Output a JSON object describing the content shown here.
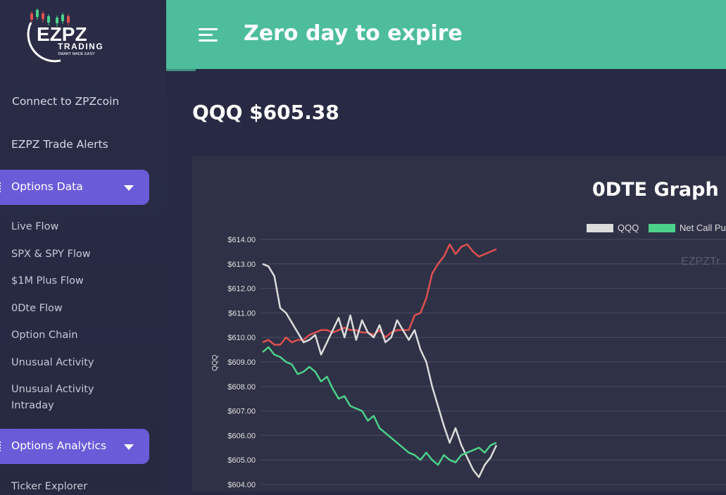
{
  "sidebar": {
    "brand_line1": "EZPZ",
    "brand_line2": "TRADING",
    "brand_tagline": "SMART MADE EASY",
    "items": [
      {
        "label": "Connect to ZPZcoin"
      },
      {
        "label": "EZPZ Trade Alerts"
      }
    ],
    "options_data": {
      "label": "Options Data",
      "subitems": [
        {
          "label": "Live Flow"
        },
        {
          "label": "SPX & SPY Flow"
        },
        {
          "label": "$1M Plus Flow"
        },
        {
          "label": "0Dte Flow"
        },
        {
          "label": "Option Chain"
        },
        {
          "label": "Unusual Activity"
        },
        {
          "label": "Unusual Activity Intraday"
        }
      ]
    },
    "options_analytics": {
      "label": "Options Analytics",
      "subitems": [
        {
          "label": "Ticker Explorer"
        }
      ]
    }
  },
  "header": {
    "title": "Zero day to expire"
  },
  "main": {
    "ticker_line": "QQQ $605.38"
  },
  "colors": {
    "accent_green": "#4dbd9c",
    "accent_purple": "#6a5bd8",
    "qqq_line": "#dcdcdc",
    "net_call_put_line": "#4cd18a",
    "red_line": "#e05050"
  },
  "chart_data": {
    "type": "line",
    "title": "0DTE Graph",
    "ylabel": "QQQ",
    "watermark": "EZPZTr",
    "ylim": [
      604,
      614
    ],
    "yticks": [
      "$614.00",
      "$613.00",
      "$612.00",
      "$611.00",
      "$610.00",
      "$609.00",
      "$608.00",
      "$607.00",
      "$606.00",
      "$605.00",
      "$604.00"
    ],
    "legend": [
      "QQQ",
      "Net Call Pu"
    ],
    "series": [
      {
        "name": "QQQ",
        "color": "#dcdcdc",
        "values": [
          613.0,
          612.9,
          612.5,
          611.2,
          611.0,
          610.6,
          610.2,
          609.8,
          609.9,
          610.1,
          609.3,
          609.8,
          610.3,
          610.8,
          610.0,
          610.9,
          609.9,
          610.7,
          610.2,
          610.0,
          610.5,
          609.8,
          610.0,
          610.7,
          610.3,
          609.9,
          610.3,
          609.5,
          609.0,
          608.0,
          607.2,
          606.4,
          605.7,
          606.3,
          605.6,
          605.1,
          604.6,
          604.3,
          604.8,
          605.1,
          605.6
        ]
      },
      {
        "name": "Net Call Put",
        "color": "#4cd18a",
        "values": [
          609.4,
          609.6,
          609.3,
          609.2,
          609.0,
          608.9,
          608.5,
          608.6,
          608.8,
          608.6,
          608.2,
          608.4,
          607.9,
          607.5,
          607.6,
          607.2,
          607.1,
          607.0,
          606.6,
          606.8,
          606.3,
          606.1,
          605.9,
          605.7,
          605.5,
          605.3,
          605.2,
          605.0,
          605.3,
          605.0,
          604.8,
          605.2,
          605.0,
          604.9,
          605.2,
          605.3,
          605.4,
          605.5,
          605.3,
          605.6,
          605.7
        ]
      },
      {
        "name": "",
        "color": "#e05050",
        "values": [
          609.8,
          609.9,
          609.7,
          609.7,
          610.0,
          609.8,
          609.9,
          609.9,
          610.1,
          610.2,
          610.3,
          610.3,
          610.2,
          610.3,
          610.4,
          610.3,
          610.3,
          610.2,
          610.2,
          610.1,
          610.3,
          610.0,
          610.2,
          610.3,
          610.3,
          610.3,
          610.9,
          611.0,
          611.6,
          612.6,
          613.0,
          613.3,
          613.8,
          613.4,
          613.7,
          613.8,
          613.5,
          613.3,
          613.4,
          613.5,
          613.6
        ]
      }
    ]
  }
}
